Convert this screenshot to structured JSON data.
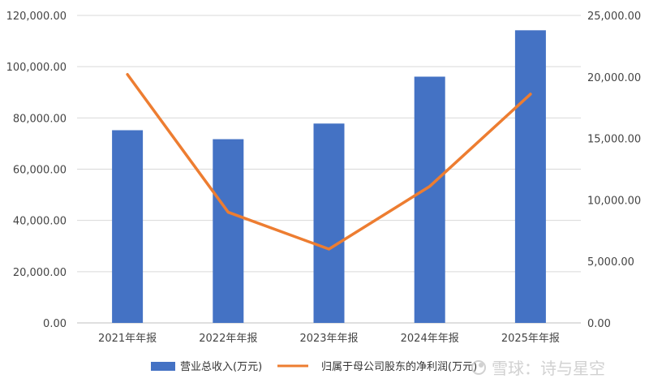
{
  "chart_data": {
    "type": "bar",
    "categories": [
      "2021年年报",
      "2022年年报",
      "2023年年报",
      "2024年年报",
      "2025年年报"
    ],
    "series": [
      {
        "name": "营业总收入(万元)",
        "type": "bar",
        "axis": "left",
        "color": "#4472C4",
        "values": [
          75200,
          71700,
          77800,
          96100,
          114200
        ]
      },
      {
        "name": "归属于母公司股东的净利润(万元)",
        "type": "line",
        "axis": "right",
        "color": "#ED7D31",
        "values": [
          20200,
          9000,
          6000,
          11100,
          18600
        ]
      }
    ],
    "y_left": {
      "ylim": [
        0,
        120000
      ],
      "ticks": [
        "0.00",
        "20,000.00",
        "40,000.00",
        "60,000.00",
        "80,000.00",
        "100,000.00",
        "120,000.00"
      ]
    },
    "y_right": {
      "ylim": [
        0,
        25000
      ],
      "ticks": [
        "0.00",
        "5,000.00",
        "10,000.00",
        "15,000.00",
        "20,000.00",
        "25,000.00"
      ]
    },
    "grid": true,
    "legend": "bottom"
  },
  "watermark": {
    "text": "雪球：诗与星空",
    "icon": "snowball-icon"
  }
}
